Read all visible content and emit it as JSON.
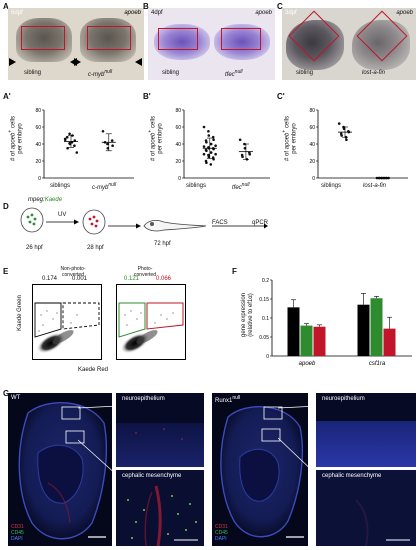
{
  "panels": {
    "A": {
      "letter": "A",
      "stage": "6dpf",
      "gene": "apoeb",
      "left_label": "sibling",
      "right_label_prefix": "c-myb",
      "right_label_sup": "null"
    },
    "B": {
      "letter": "B",
      "stage": "4dpf",
      "gene": "apoeb",
      "left_label": "sibling",
      "right_label_prefix": "tfec",
      "right_label_sup": "null"
    },
    "C": {
      "letter": "C",
      "stage": "3dpf",
      "gene": "apoeb",
      "left_label": "sibling",
      "right_label": "lost-a-fin"
    },
    "A2": {
      "letter": "A'",
      "ylabel_prefix": "# of ",
      "ylabel_gene": "apoeb",
      "ylabel_sup": "+",
      "ylabel_suffix": " cells",
      "ylabel_line2": "per embryo",
      "x_left": "siblings",
      "x_right_prefix": "c-myb",
      "x_right_sup": "null"
    },
    "B2": {
      "letter": "B'",
      "ylabel_prefix": "# of ",
      "ylabel_gene": "apoeb",
      "ylabel_sup": "+",
      "ylabel_suffix": " cells",
      "ylabel_line2": "per embryo",
      "x_left": "siblings",
      "x_right_prefix": "tfec",
      "x_right_sup": "null"
    },
    "C2": {
      "letter": "C'",
      "ylabel_prefix": "# of ",
      "ylabel_gene": "apoeb",
      "ylabel_sup": "+",
      "ylabel_suffix": " cells",
      "ylabel_line2": "per embryo",
      "x_left": "siblings",
      "x_right": "lost-a-fin"
    },
    "D": {
      "letter": "D",
      "transgene_a": "mpeg:",
      "transgene_b": "Kaede",
      "uv": "UV",
      "t1": "26 hpf",
      "t2": "28 hpf",
      "t3": "72 hpf",
      "facs": "FACS",
      "qpcr": "qPCR"
    },
    "E": {
      "letter": "E",
      "left_title_1": "Non-photo-",
      "left_title_2": "converted",
      "right_title_1": "Photo-",
      "right_title_2": "converted",
      "left_g": "0.174",
      "left_r": "0.001",
      "right_g": "0.121",
      "right_r": "0.066",
      "ylabel": "Kaede Green",
      "xlabel": "Kaede Red"
    },
    "F": {
      "letter": "F",
      "ylabel_1": "gene expression",
      "ylabel_2": "(relative to ef1α)"
    },
    "G": {
      "letter": "G",
      "left_title": "WT",
      "right_title_prefix": "Runx1",
      "right_title_sup": "null",
      "inset1": "neuroepithelium",
      "inset2": "cephalic mesenchyme",
      "legend": [
        "CD31",
        "CD45",
        "DAPI"
      ]
    }
  },
  "colors": {
    "red": "#c0152a",
    "green": "#2e8b2e",
    "blue": "#3b4fe0",
    "black": "#000000"
  },
  "chart_data": [
    {
      "type": "scatter",
      "panel": "A'",
      "categories": [
        "siblings",
        "c-myb null"
      ],
      "ylim": [
        0,
        80
      ],
      "yticks": [
        0,
        20,
        40,
        60,
        80
      ],
      "series": [
        {
          "values": [
            45,
            52,
            40,
            38,
            44,
            48,
            35,
            42,
            50,
            30,
            46,
            41
          ],
          "mean": 43,
          "sd": 7
        },
        {
          "values": [
            55,
            40,
            35,
            44,
            38,
            42
          ],
          "mean": 42,
          "sd": 10
        }
      ]
    },
    {
      "type": "scatter",
      "panel": "B'",
      "categories": [
        "siblings",
        "tfec null"
      ],
      "ylim": [
        0,
        80
      ],
      "yticks": [
        0,
        20,
        40,
        60,
        80
      ],
      "series": [
        {
          "values": [
            60,
            55,
            50,
            48,
            45,
            44,
            42,
            40,
            40,
            38,
            37,
            36,
            35,
            35,
            34,
            33,
            32,
            30,
            30,
            28,
            28,
            27,
            25,
            24,
            22,
            20,
            18,
            16
          ],
          "mean": 35,
          "sd": 12
        },
        {
          "values": [
            45,
            40,
            35,
            30,
            28,
            27,
            25,
            22
          ],
          "mean": 31,
          "sd": 9
        }
      ]
    },
    {
      "type": "scatter",
      "panel": "C'",
      "categories": [
        "siblings",
        "lost-a-fin"
      ],
      "ylim": [
        0,
        80
      ],
      "yticks": [
        0,
        20,
        40,
        60,
        80
      ],
      "series": [
        {
          "values": [
            64,
            60,
            58,
            55,
            54,
            52,
            50,
            48,
            45
          ],
          "mean": 54,
          "sd": 6
        },
        {
          "values": [
            0,
            0,
            0,
            0,
            0,
            0,
            0,
            0,
            0,
            0
          ],
          "mean": 0,
          "sd": 0
        }
      ]
    },
    {
      "type": "bar",
      "panel": "F",
      "categories": [
        "apoeb",
        "csf1ra"
      ],
      "ylim": [
        0,
        0.2
      ],
      "yticks": [
        0,
        0.05,
        0.1,
        0.15,
        0.2
      ],
      "ylabel": "gene expression (relative to ef1α)",
      "series": [
        {
          "color": "#000000",
          "values": [
            0.128,
            0.135
          ],
          "err": [
            0.02,
            0.03
          ]
        },
        {
          "color": "#2e8b2e",
          "values": [
            0.08,
            0.152
          ],
          "err": [
            0.005,
            0.005
          ]
        },
        {
          "color": "#c0152a",
          "values": [
            0.077,
            0.072
          ],
          "err": [
            0.005,
            0.03
          ]
        }
      ]
    }
  ]
}
